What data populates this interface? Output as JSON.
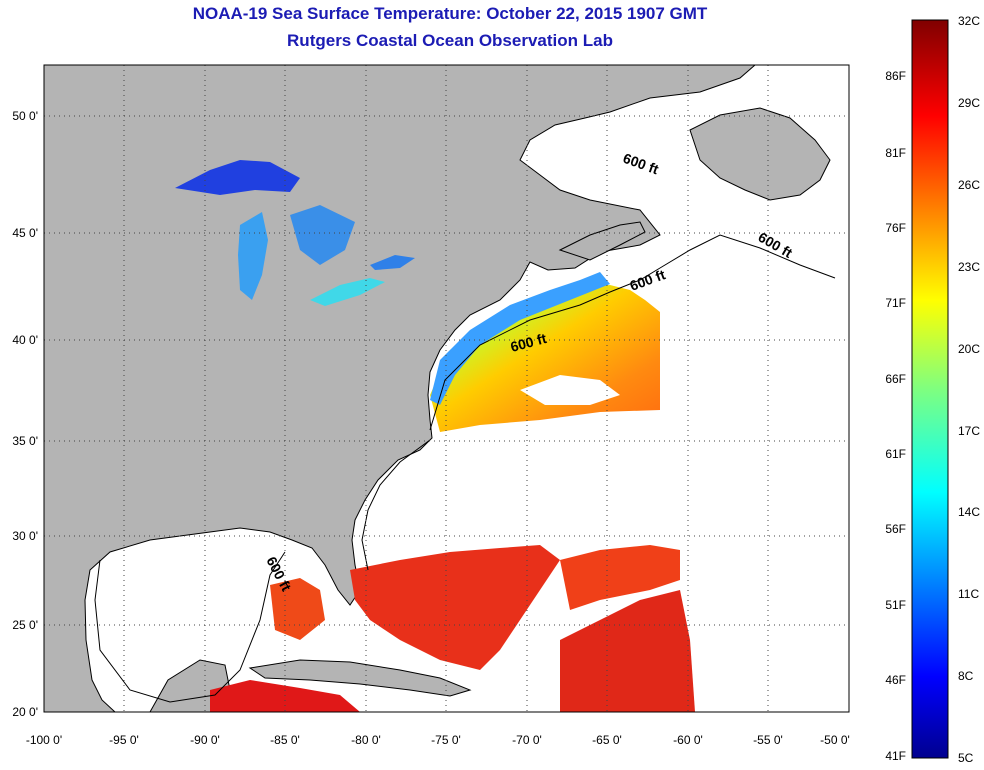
{
  "title": {
    "line1": "NOAA-19 Sea Surface Temperature:  October 22, 2015 1907 GMT",
    "line2": "Rutgers Coastal Ocean Observation Lab"
  },
  "map": {
    "lon_range": [
      -100,
      -50
    ],
    "lat_range": [
      20,
      52.5
    ],
    "lon_ticks": [
      "-100 0'",
      "-95 0'",
      "-90 0'",
      "-85 0'",
      "-80 0'",
      "-75 0'",
      "-70 0'",
      "-65 0'",
      "-60 0'",
      "-55 0'",
      "-50 0'"
    ],
    "lat_ticks": [
      "50 0'",
      "45 0'",
      "40 0'",
      "35 0'",
      "30 0'",
      "25 0'",
      "20 0'"
    ],
    "depth_labels": [
      "600 ft",
      "600 ft",
      "600 ft",
      "600 ft",
      "600 ft"
    ],
    "colors": {
      "land": "#b4b4b4",
      "ocean_nodata": "#ffffff"
    }
  },
  "colorbar": {
    "celsius_labels": [
      "32C",
      "29C",
      "26C",
      "23C",
      "20C",
      "17C",
      "14C",
      "11C",
      "8C",
      "5C"
    ],
    "fahrenheit_labels": [
      "86F",
      "81F",
      "76F",
      "71F",
      "66F",
      "61F",
      "56F",
      "51F",
      "46F",
      "41F"
    ],
    "range_celsius": [
      5,
      32
    ]
  }
}
